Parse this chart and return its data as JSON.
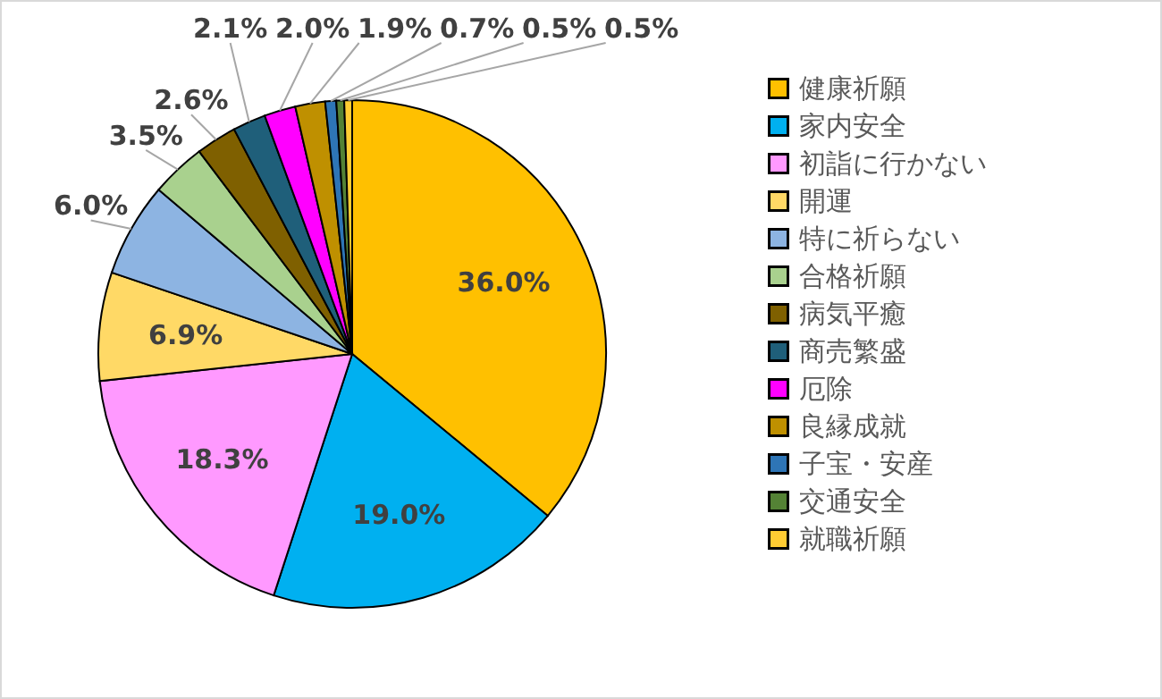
{
  "chart_data": {
    "type": "pie",
    "categories": [
      "健康祈願",
      "家内安全",
      "初詣に行かない",
      "開運",
      "特に祈らない",
      "合格祈願",
      "病気平癒",
      "商売繁盛",
      "厄除",
      "良縁成就",
      "子宝・安産",
      "交通安全",
      "就職祈願"
    ],
    "values": [
      36.0,
      19.0,
      18.3,
      6.9,
      6.0,
      3.5,
      2.6,
      2.1,
      2.0,
      1.9,
      0.7,
      0.5,
      0.5
    ],
    "value_labels": [
      "36.0%",
      "19.0%",
      "18.3%",
      "6.9%",
      "6.0%",
      "3.5%",
      "2.6%",
      "2.1%",
      "2.0%",
      "1.9%",
      "0.7%",
      "0.5%",
      "0.5%"
    ],
    "colors": [
      "#ffc000",
      "#00b0f0",
      "#ff99ff",
      "#ffd966",
      "#8db4e2",
      "#a9d18e",
      "#7f6000",
      "#1f5f7a",
      "#ff00ff",
      "#bf9000",
      "#2e75b6",
      "#548235",
      "#ffcc33"
    ],
    "legend": "right"
  }
}
